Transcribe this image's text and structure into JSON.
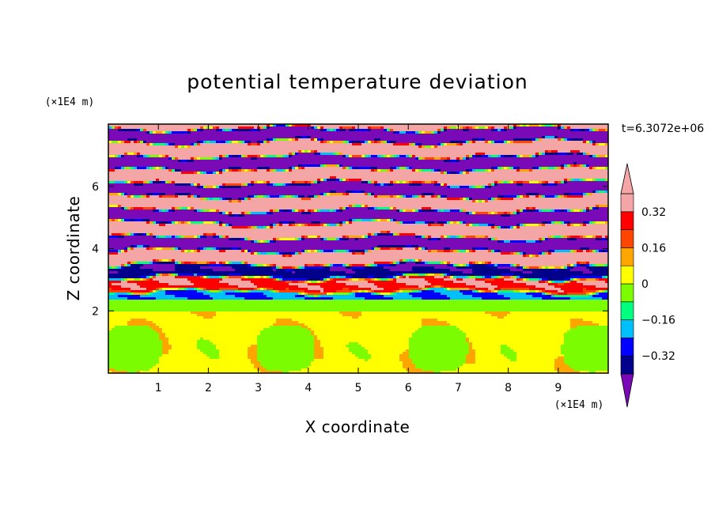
{
  "chart_data": {
    "type": "heatmap",
    "title": "potential temperature deviation",
    "xlabel": "X coordinate",
    "ylabel": "Z coordinate",
    "x_unit": "(×1E4 m)",
    "y_unit": "(×1E4 m)",
    "time_label": "t=6.3072e+06",
    "xlim": [
      0,
      10
    ],
    "ylim": [
      0,
      8
    ],
    "x_ticks": [
      1,
      2,
      3,
      4,
      5,
      6,
      7,
      8,
      9
    ],
    "y_ticks": [
      2,
      4,
      6
    ],
    "grid": false,
    "colorbar": {
      "levels": [
        -0.4,
        -0.32,
        -0.24,
        -0.16,
        -0.08,
        0,
        0.08,
        0.16,
        0.24,
        0.32,
        0.4
      ],
      "tick_labels": [
        "0.32",
        "0.16",
        "0",
        "−0.16",
        "−0.32"
      ],
      "tick_values": [
        0.32,
        0.16,
        0,
        -0.16,
        -0.32
      ],
      "colors_low_to_high": [
        "#00008b",
        "#0000ff",
        "#00bfff",
        "#00ff7f",
        "#7cfc00",
        "#ffff00",
        "#ffa500",
        "#ff4500",
        "#ff0000",
        "#f4a6a6"
      ],
      "under_color": "#7a0ab8",
      "over_color": "#f4a6a6",
      "extend": "both"
    },
    "structure": {
      "lower_layer_z_top": 2.0,
      "lower_layer_value_approx": 0.0,
      "upper_layer_pattern": "alternating horizontal bands of about ±0.4 between z≈2 and z≈8"
    }
  }
}
